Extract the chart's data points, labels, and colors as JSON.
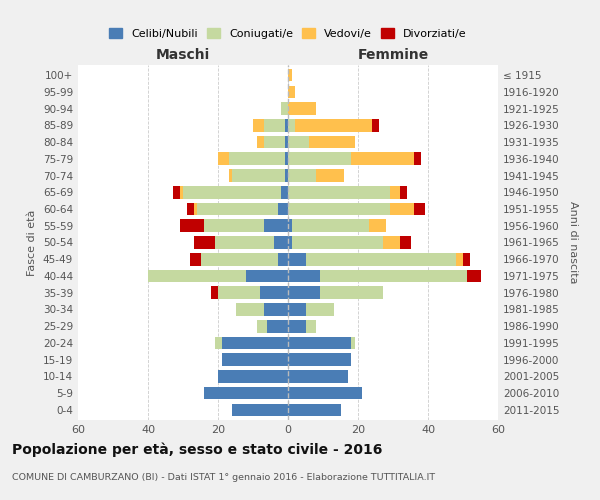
{
  "age_groups": [
    "0-4",
    "5-9",
    "10-14",
    "15-19",
    "20-24",
    "25-29",
    "30-34",
    "35-39",
    "40-44",
    "45-49",
    "50-54",
    "55-59",
    "60-64",
    "65-69",
    "70-74",
    "75-79",
    "80-84",
    "85-89",
    "90-94",
    "95-99",
    "100+"
  ],
  "birth_years": [
    "2011-2015",
    "2006-2010",
    "2001-2005",
    "1996-2000",
    "1991-1995",
    "1986-1990",
    "1981-1985",
    "1976-1980",
    "1971-1975",
    "1966-1970",
    "1961-1965",
    "1956-1960",
    "1951-1955",
    "1946-1950",
    "1941-1945",
    "1936-1940",
    "1931-1935",
    "1926-1930",
    "1921-1925",
    "1916-1920",
    "≤ 1915"
  ],
  "colors": {
    "celibi": "#4a7db5",
    "coniugati": "#c5d9a0",
    "vedovi": "#ffc04d",
    "divorziati": "#c00000"
  },
  "maschi": {
    "celibi": [
      16,
      24,
      20,
      19,
      19,
      6,
      7,
      8,
      12,
      3,
      4,
      7,
      3,
      2,
      1,
      1,
      1,
      1,
      0,
      0,
      0
    ],
    "coniugati": [
      0,
      0,
      0,
      0,
      2,
      3,
      8,
      12,
      28,
      22,
      17,
      17,
      23,
      28,
      15,
      16,
      6,
      6,
      2,
      0,
      0
    ],
    "vedovi": [
      0,
      0,
      0,
      0,
      0,
      0,
      0,
      0,
      0,
      0,
      0,
      0,
      1,
      1,
      1,
      3,
      2,
      3,
      0,
      0,
      0
    ],
    "divorziati": [
      0,
      0,
      0,
      0,
      0,
      0,
      0,
      2,
      0,
      3,
      6,
      7,
      2,
      2,
      0,
      0,
      0,
      0,
      0,
      0,
      0
    ]
  },
  "femmine": {
    "celibi": [
      15,
      21,
      17,
      18,
      18,
      5,
      5,
      9,
      9,
      5,
      1,
      1,
      0,
      0,
      0,
      0,
      0,
      0,
      0,
      0,
      0
    ],
    "coniugati": [
      0,
      0,
      0,
      0,
      1,
      3,
      8,
      18,
      42,
      43,
      26,
      22,
      29,
      29,
      8,
      18,
      6,
      2,
      0,
      0,
      0
    ],
    "vedovi": [
      0,
      0,
      0,
      0,
      0,
      0,
      0,
      0,
      0,
      2,
      5,
      5,
      7,
      3,
      8,
      18,
      13,
      22,
      8,
      2,
      1
    ],
    "divorziati": [
      0,
      0,
      0,
      0,
      0,
      0,
      0,
      0,
      4,
      2,
      3,
      0,
      3,
      2,
      0,
      2,
      0,
      2,
      0,
      0,
      0
    ]
  },
  "xlim": 60,
  "title": "Popolazione per età, sesso e stato civile - 2016",
  "subtitle": "COMUNE DI CAMBURZANO (BI) - Dati ISTAT 1° gennaio 2016 - Elaborazione TUTTITALIA.IT",
  "ylabel": "Fasce di età",
  "ylabel_right": "Anni di nascita",
  "xlabel_left": "Maschi",
  "xlabel_right": "Femmine",
  "legend_labels": [
    "Celibi/Nubili",
    "Coniugati/e",
    "Vedovi/e",
    "Divorziati/e"
  ],
  "bg_color": "#f0f0f0",
  "plot_bg": "#ffffff"
}
